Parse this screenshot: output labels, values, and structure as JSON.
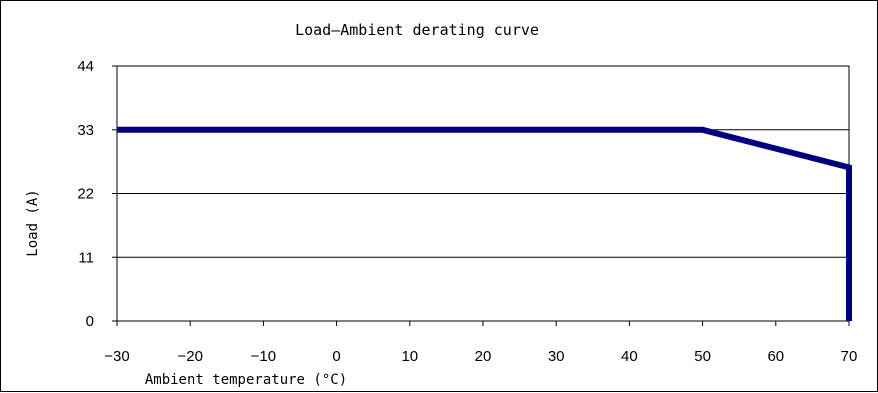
{
  "chart_data": {
    "type": "line",
    "title": "Load—Ambient derating curve",
    "xlabel": "Ambient temperature (°C)",
    "ylabel": "Load (A)",
    "xlim": [
      -30,
      70
    ],
    "ylim": [
      0,
      44
    ],
    "xticks": [
      "-30",
      "-20",
      "-10",
      "0",
      "10",
      "20",
      "30",
      "40",
      "50",
      "60",
      "70"
    ],
    "yticks": [
      "0",
      "11",
      "22",
      "33",
      "44"
    ],
    "grid": "horizontal",
    "legend": "none",
    "series": [
      {
        "x": [
          -30,
          50,
          70,
          70
        ],
        "y": [
          33,
          33,
          26.5,
          0
        ],
        "color": "#00007f"
      }
    ]
  }
}
